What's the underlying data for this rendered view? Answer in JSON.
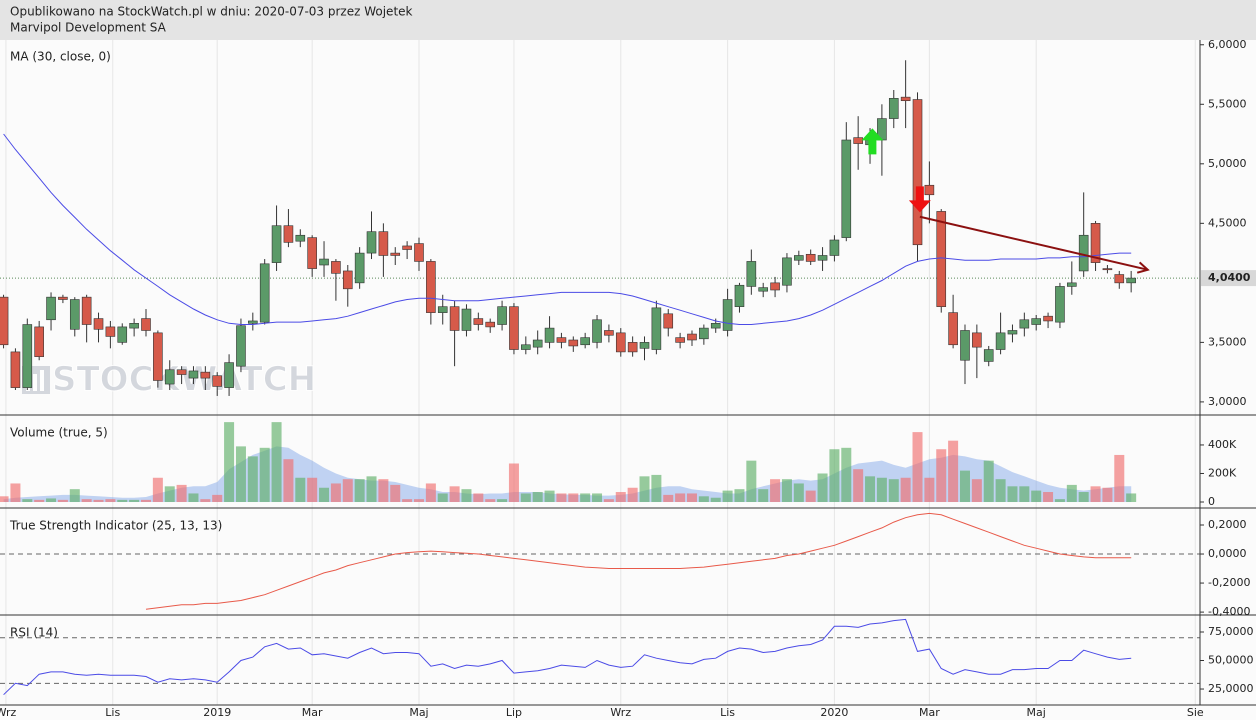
{
  "header": {
    "title": "Opublikowano na StockWatch.pl w dniu: 2020-07-03 przez Wojetek",
    "subtitle": "Marvipol Development SA"
  },
  "chart_data": [
    {
      "type": "candlestick",
      "watermark": "STOCKWATCH",
      "open": [
        3.88,
        3.42,
        3.12,
        3.63,
        3.69,
        3.88,
        3.61,
        3.88,
        3.7,
        3.63,
        3.5,
        3.62,
        3.7,
        3.58,
        3.15,
        3.27,
        3.2,
        3.25,
        3.22,
        3.12,
        3.3,
        3.66,
        3.67,
        4.17,
        4.48,
        4.35,
        4.38,
        4.15,
        4.18,
        4.1,
        4.0,
        4.25,
        4.43,
        4.25,
        4.31,
        4.33,
        4.18,
        3.75,
        3.8,
        3.6,
        3.7,
        3.67,
        3.65,
        3.8,
        3.44,
        3.46,
        3.5,
        3.54,
        3.52,
        3.48,
        3.5,
        3.6,
        3.58,
        3.5,
        3.45,
        3.44,
        3.74,
        3.54,
        3.57,
        3.53,
        3.62,
        3.6,
        3.8,
        3.97,
        3.93,
        4.0,
        3.98,
        4.19,
        4.24,
        4.19,
        4.23,
        4.38,
        5.22,
        5.16,
        5.2,
        5.38,
        5.56,
        5.54,
        4.82,
        4.6,
        3.75,
        3.35,
        3.58,
        3.34,
        3.44,
        3.57,
        3.62,
        3.65,
        3.72,
        3.67,
        3.97,
        4.1,
        4.5,
        4.12,
        4.07,
        4.0
      ],
      "high": [
        3.9,
        3.45,
        3.7,
        3.68,
        3.92,
        3.9,
        3.88,
        3.9,
        3.75,
        3.68,
        3.66,
        3.7,
        3.78,
        3.6,
        3.35,
        3.3,
        3.3,
        3.3,
        3.25,
        3.4,
        3.7,
        3.75,
        4.2,
        4.65,
        4.62,
        4.45,
        4.4,
        4.35,
        4.2,
        4.15,
        4.3,
        4.6,
        4.5,
        4.3,
        4.35,
        4.38,
        4.2,
        3.9,
        3.85,
        3.82,
        3.75,
        3.7,
        3.85,
        3.83,
        3.55,
        3.6,
        3.72,
        3.58,
        3.55,
        3.58,
        3.73,
        3.65,
        3.62,
        3.55,
        3.55,
        3.85,
        3.78,
        3.58,
        3.6,
        3.65,
        3.7,
        3.95,
        4.0,
        4.28,
        4.0,
        4.05,
        4.25,
        4.27,
        4.28,
        4.3,
        4.4,
        5.35,
        5.4,
        5.3,
        5.5,
        5.62,
        5.87,
        5.6,
        5.02,
        4.62,
        3.9,
        3.65,
        3.65,
        3.47,
        3.75,
        3.65,
        3.75,
        3.73,
        3.75,
        4.0,
        4.18,
        4.76,
        4.52,
        4.15,
        4.1,
        4.1
      ],
      "low": [
        3.45,
        3.1,
        3.1,
        3.35,
        3.6,
        3.83,
        3.55,
        3.5,
        3.5,
        3.45,
        3.48,
        3.55,
        3.55,
        3.12,
        3.1,
        3.15,
        3.15,
        3.1,
        3.05,
        3.05,
        3.25,
        3.6,
        3.65,
        4.1,
        4.3,
        4.3,
        4.05,
        4.05,
        3.85,
        3.8,
        3.95,
        4.2,
        4.05,
        4.15,
        4.2,
        4.1,
        3.65,
        3.65,
        3.3,
        3.55,
        3.6,
        3.58,
        3.6,
        3.4,
        3.4,
        3.4,
        3.45,
        3.45,
        3.42,
        3.45,
        3.45,
        3.5,
        3.38,
        3.38,
        3.35,
        3.4,
        3.55,
        3.45,
        3.47,
        3.48,
        3.58,
        3.55,
        3.75,
        3.9,
        3.88,
        3.88,
        3.92,
        4.15,
        4.15,
        4.1,
        4.18,
        4.35,
        4.95,
        5.0,
        4.9,
        5.3,
        5.3,
        4.18,
        4.5,
        3.75,
        3.45,
        3.15,
        3.2,
        3.3,
        3.4,
        3.5,
        3.55,
        3.6,
        3.62,
        3.62,
        3.9,
        4.05,
        4.1,
        4.08,
        3.95,
        3.92
      ],
      "close": [
        3.48,
        3.12,
        3.65,
        3.38,
        3.88,
        3.86,
        3.86,
        3.65,
        3.61,
        3.55,
        3.63,
        3.66,
        3.6,
        3.18,
        3.27,
        3.23,
        3.26,
        3.2,
        3.13,
        3.33,
        3.64,
        3.68,
        4.16,
        4.48,
        4.34,
        4.4,
        4.12,
        4.2,
        4.08,
        3.95,
        4.25,
        4.43,
        4.23,
        4.23,
        4.28,
        4.18,
        3.75,
        3.8,
        3.6,
        3.78,
        3.65,
        3.63,
        3.8,
        3.44,
        3.48,
        3.52,
        3.62,
        3.5,
        3.47,
        3.54,
        3.69,
        3.56,
        3.42,
        3.42,
        3.5,
        3.79,
        3.62,
        3.5,
        3.52,
        3.62,
        3.66,
        3.86,
        3.98,
        4.18,
        3.96,
        3.94,
        4.21,
        4.23,
        4.18,
        4.23,
        4.36,
        5.2,
        5.17,
        5.2,
        5.38,
        5.55,
        5.53,
        4.32,
        4.74,
        3.8,
        3.48,
        3.6,
        3.46,
        3.44,
        3.58,
        3.6,
        3.69,
        3.7,
        3.68,
        3.97,
        4.0,
        4.4,
        4.17,
        4.11,
        4.0,
        4.04
      ],
      "up_color": "#5b9a68",
      "down_color": "#d65a4a",
      "series": [
        {
          "name": "MA (30, close, 0)",
          "color": "#4b4be6",
          "values": [
            5.25,
            5.12,
            5.0,
            4.88,
            4.76,
            4.65,
            4.55,
            4.45,
            4.36,
            4.27,
            4.19,
            4.11,
            4.04,
            3.97,
            3.9,
            3.84,
            3.78,
            3.73,
            3.69,
            3.66,
            3.65,
            3.65,
            3.66,
            3.67,
            3.67,
            3.67,
            3.68,
            3.69,
            3.7,
            3.72,
            3.75,
            3.78,
            3.81,
            3.84,
            3.86,
            3.87,
            3.87,
            3.86,
            3.85,
            3.85,
            3.85,
            3.86,
            3.87,
            3.88,
            3.89,
            3.9,
            3.91,
            3.92,
            3.92,
            3.92,
            3.92,
            3.92,
            3.91,
            3.89,
            3.86,
            3.83,
            3.8,
            3.77,
            3.74,
            3.71,
            3.68,
            3.66,
            3.65,
            3.65,
            3.66,
            3.67,
            3.68,
            3.7,
            3.73,
            3.77,
            3.82,
            3.87,
            3.92,
            3.97,
            4.02,
            4.08,
            4.14,
            4.18,
            4.2,
            4.21,
            4.2,
            4.19,
            4.19,
            4.19,
            4.2,
            4.2,
            4.2,
            4.2,
            4.21,
            4.21,
            4.22,
            4.22,
            4.23,
            4.24,
            4.25,
            4.25
          ]
        }
      ],
      "last_price": {
        "value": 4.04,
        "label": "4,0400"
      },
      "trend": {
        "x": [
          77.2,
          96.4
        ],
        "y": [
          4.555,
          4.11
        ],
        "color": "#8b1010"
      },
      "arrows": [
        {
          "direction": "up",
          "x": 73.2,
          "y": 5.18,
          "color": "#22dd22"
        },
        {
          "direction": "down",
          "x": 77.2,
          "y": 4.71,
          "color": "#ee1111"
        }
      ],
      "ylim": [
        2.89,
        6.04
      ],
      "yticks": [
        {
          "value": 6,
          "label": "6,0000"
        },
        {
          "value": 5.5,
          "label": "5,5000"
        },
        {
          "value": 5,
          "label": "5,0000"
        },
        {
          "value": 4.5,
          "label": "4,5000"
        },
        {
          "value": 3.5,
          "label": "3,5000"
        },
        {
          "value": 3,
          "label": "3,0000"
        }
      ]
    },
    {
      "type": "bar",
      "title": "Volume (true, 5)",
      "values": [
        40000,
        130000,
        20000,
        15000,
        25000,
        15000,
        90000,
        20000,
        15000,
        20000,
        15000,
        15000,
        15000,
        170000,
        110000,
        120000,
        60000,
        20000,
        50000,
        560000,
        390000,
        320000,
        380000,
        560000,
        300000,
        170000,
        170000,
        100000,
        130000,
        160000,
        160000,
        180000,
        160000,
        120000,
        20000,
        20000,
        130000,
        60000,
        110000,
        90000,
        60000,
        20000,
        20000,
        270000,
        60000,
        70000,
        80000,
        60000,
        60000,
        60000,
        60000,
        20000,
        70000,
        100000,
        180000,
        190000,
        50000,
        60000,
        60000,
        40000,
        30000,
        80000,
        90000,
        290000,
        90000,
        160000,
        160000,
        130000,
        80000,
        200000,
        370000,
        380000,
        230000,
        180000,
        170000,
        160000,
        170000,
        490000,
        170000,
        370000,
        430000,
        220000,
        160000,
        290000,
        160000,
        110000,
        110000,
        80000,
        70000,
        20000,
        120000,
        70000,
        110000,
        100000,
        330000,
        60000
      ],
      "up_color": "rgba(95,175,105,0.65)",
      "down_color": "rgba(240,110,110,0.65)",
      "series": [
        {
          "name": "Volume (true, 5)",
          "color": "rgba(120,160,230,0.45)",
          "values": [
            20000,
            30000,
            35000,
            40000,
            45000,
            50000,
            50000,
            45000,
            40000,
            35000,
            30000,
            30000,
            35000,
            60000,
            80000,
            100000,
            110000,
            110000,
            140000,
            230000,
            280000,
            330000,
            360000,
            390000,
            380000,
            330000,
            290000,
            240000,
            200000,
            170000,
            160000,
            150000,
            150000,
            140000,
            120000,
            100000,
            90000,
            70000,
            70000,
            60000,
            55000,
            60000,
            60000,
            70000,
            70000,
            70000,
            60000,
            55000,
            50000,
            50000,
            45000,
            45000,
            50000,
            60000,
            80000,
            100000,
            110000,
            110000,
            90000,
            80000,
            70000,
            60000,
            60000,
            90000,
            110000,
            130000,
            150000,
            160000,
            150000,
            160000,
            200000,
            240000,
            270000,
            280000,
            290000,
            260000,
            240000,
            270000,
            300000,
            310000,
            330000,
            320000,
            300000,
            290000,
            250000,
            210000,
            180000,
            150000,
            120000,
            100000,
            90000,
            80000,
            90000,
            100000,
            110000,
            110000
          ]
        }
      ],
      "ylim": [
        -42000,
        610000
      ],
      "yticks": [
        {
          "value": 400000,
          "label": "400K"
        },
        {
          "value": 200000,
          "label": "200K"
        },
        0
      ]
    },
    {
      "type": "line",
      "title": "True Strength Indicator (25, 13, 13)",
      "series": [
        {
          "name": "True Strength Indicator (25, 13, 13)",
          "color": "#e85a4a",
          "values": [
            null,
            null,
            null,
            null,
            null,
            null,
            null,
            null,
            null,
            null,
            null,
            null,
            -0.38,
            -0.37,
            -0.36,
            -0.35,
            -0.35,
            -0.34,
            -0.34,
            -0.33,
            -0.32,
            -0.3,
            -0.28,
            -0.25,
            -0.22,
            -0.19,
            -0.16,
            -0.13,
            -0.11,
            -0.08,
            -0.06,
            -0.04,
            -0.02,
            0.0,
            0.01,
            0.015,
            0.02,
            0.015,
            0.01,
            0.005,
            0.0,
            -0.01,
            -0.02,
            -0.03,
            -0.04,
            -0.05,
            -0.06,
            -0.07,
            -0.08,
            -0.09,
            -0.095,
            -0.1,
            -0.1,
            -0.1,
            -0.1,
            -0.1,
            -0.1,
            -0.1,
            -0.095,
            -0.09,
            -0.08,
            -0.07,
            -0.06,
            -0.05,
            -0.04,
            -0.03,
            -0.01,
            0.0,
            0.02,
            0.04,
            0.06,
            0.09,
            0.12,
            0.15,
            0.18,
            0.22,
            0.25,
            0.27,
            0.28,
            0.27,
            0.24,
            0.21,
            0.18,
            0.15,
            0.12,
            0.09,
            0.06,
            0.04,
            0.02,
            0.0,
            -0.01,
            -0.02,
            -0.025,
            -0.025,
            -0.025,
            -0.025
          ]
        }
      ],
      "levels": [
        0
      ],
      "ylim": [
        -0.42,
        0.317
      ],
      "yticks": [
        {
          "value": 0.2,
          "label": "0,2000"
        },
        {
          "value": 0,
          "label": "0,0000"
        },
        {
          "value": -0.2,
          "label": "-0,2000"
        },
        {
          "value": -0.4,
          "label": "-0,4000"
        }
      ]
    },
    {
      "type": "line",
      "title": "RSI (14)",
      "series": [
        {
          "name": "RSI (14)",
          "color": "#4b4be6",
          "values": [
            20,
            30,
            28,
            38,
            40,
            40,
            38,
            37,
            38,
            37,
            37,
            37,
            36,
            31,
            34,
            33,
            34,
            33,
            31,
            40,
            50,
            53,
            62,
            65,
            60,
            61,
            55,
            56,
            54,
            52,
            57,
            61,
            56,
            57,
            57,
            56,
            45,
            47,
            43,
            46,
            45,
            47,
            50,
            39,
            40,
            41,
            43,
            46,
            45,
            44,
            50,
            46,
            44,
            45,
            55,
            52,
            50,
            48,
            47,
            51,
            52,
            58,
            61,
            60,
            57,
            58,
            61,
            63,
            64,
            68,
            80,
            80,
            79,
            82,
            83,
            85,
            86,
            58,
            60,
            43,
            38,
            42,
            40,
            38,
            38,
            42,
            42,
            43,
            43,
            50,
            50,
            59,
            56,
            53,
            51,
            52
          ]
        }
      ],
      "levels": [
        70,
        30
      ],
      "ylim": [
        11,
        89.9
      ],
      "yticks": [
        {
          "value": 75,
          "label": "75,0000"
        },
        {
          "value": 50,
          "label": "50,0000"
        },
        {
          "value": 25,
          "label": "25,0000"
        }
      ],
      "grid": true,
      "xlim": [
        -0.3,
        100.8
      ],
      "xticks": [
        {
          "value": 0.2,
          "label": "Wrz"
        },
        {
          "value": 9.2,
          "label": "Lis"
        },
        {
          "value": 18,
          "label": "2019"
        },
        {
          "value": 26,
          "label": "Mar"
        },
        {
          "value": 35,
          "label": "Maj"
        },
        {
          "value": 43,
          "label": "Lip"
        },
        {
          "value": 52,
          "label": "Wrz"
        },
        {
          "value": 61,
          "label": "Lis"
        },
        {
          "value": 70,
          "label": "2020"
        },
        {
          "value": 78,
          "label": "Mar"
        },
        {
          "value": 87,
          "label": "Maj"
        },
        {
          "value": 100.4,
          "label": "Sie"
        }
      ]
    }
  ]
}
